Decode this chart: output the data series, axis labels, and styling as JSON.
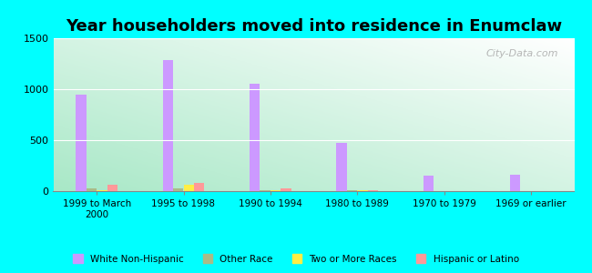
{
  "title": "Year householders moved into residence in Enumclaw",
  "categories": [
    "1999 to March\n2000",
    "1995 to 1998",
    "1990 to 1994",
    "1980 to 1989",
    "1970 to 1979",
    "1969 or earlier"
  ],
  "series": {
    "White Non-Hispanic": [
      950,
      1290,
      1055,
      470,
      155,
      165
    ],
    "Other Race": [
      25,
      30,
      5,
      5,
      0,
      0
    ],
    "Two or More Races": [
      5,
      60,
      5,
      5,
      0,
      0
    ],
    "Hispanic or Latino": [
      65,
      80,
      25,
      10,
      0,
      0
    ]
  },
  "colors": {
    "White Non-Hispanic": "#cc99ff",
    "Other Race": "#aabb88",
    "Two or More Races": "#ffee44",
    "Hispanic or Latino": "#ff9999"
  },
  "ylim": [
    0,
    1500
  ],
  "yticks": [
    0,
    500,
    1000,
    1500
  ],
  "outer_background": "#00ffff",
  "watermark": "City-Data.com",
  "bar_width": 0.12,
  "title_fontsize": 13
}
